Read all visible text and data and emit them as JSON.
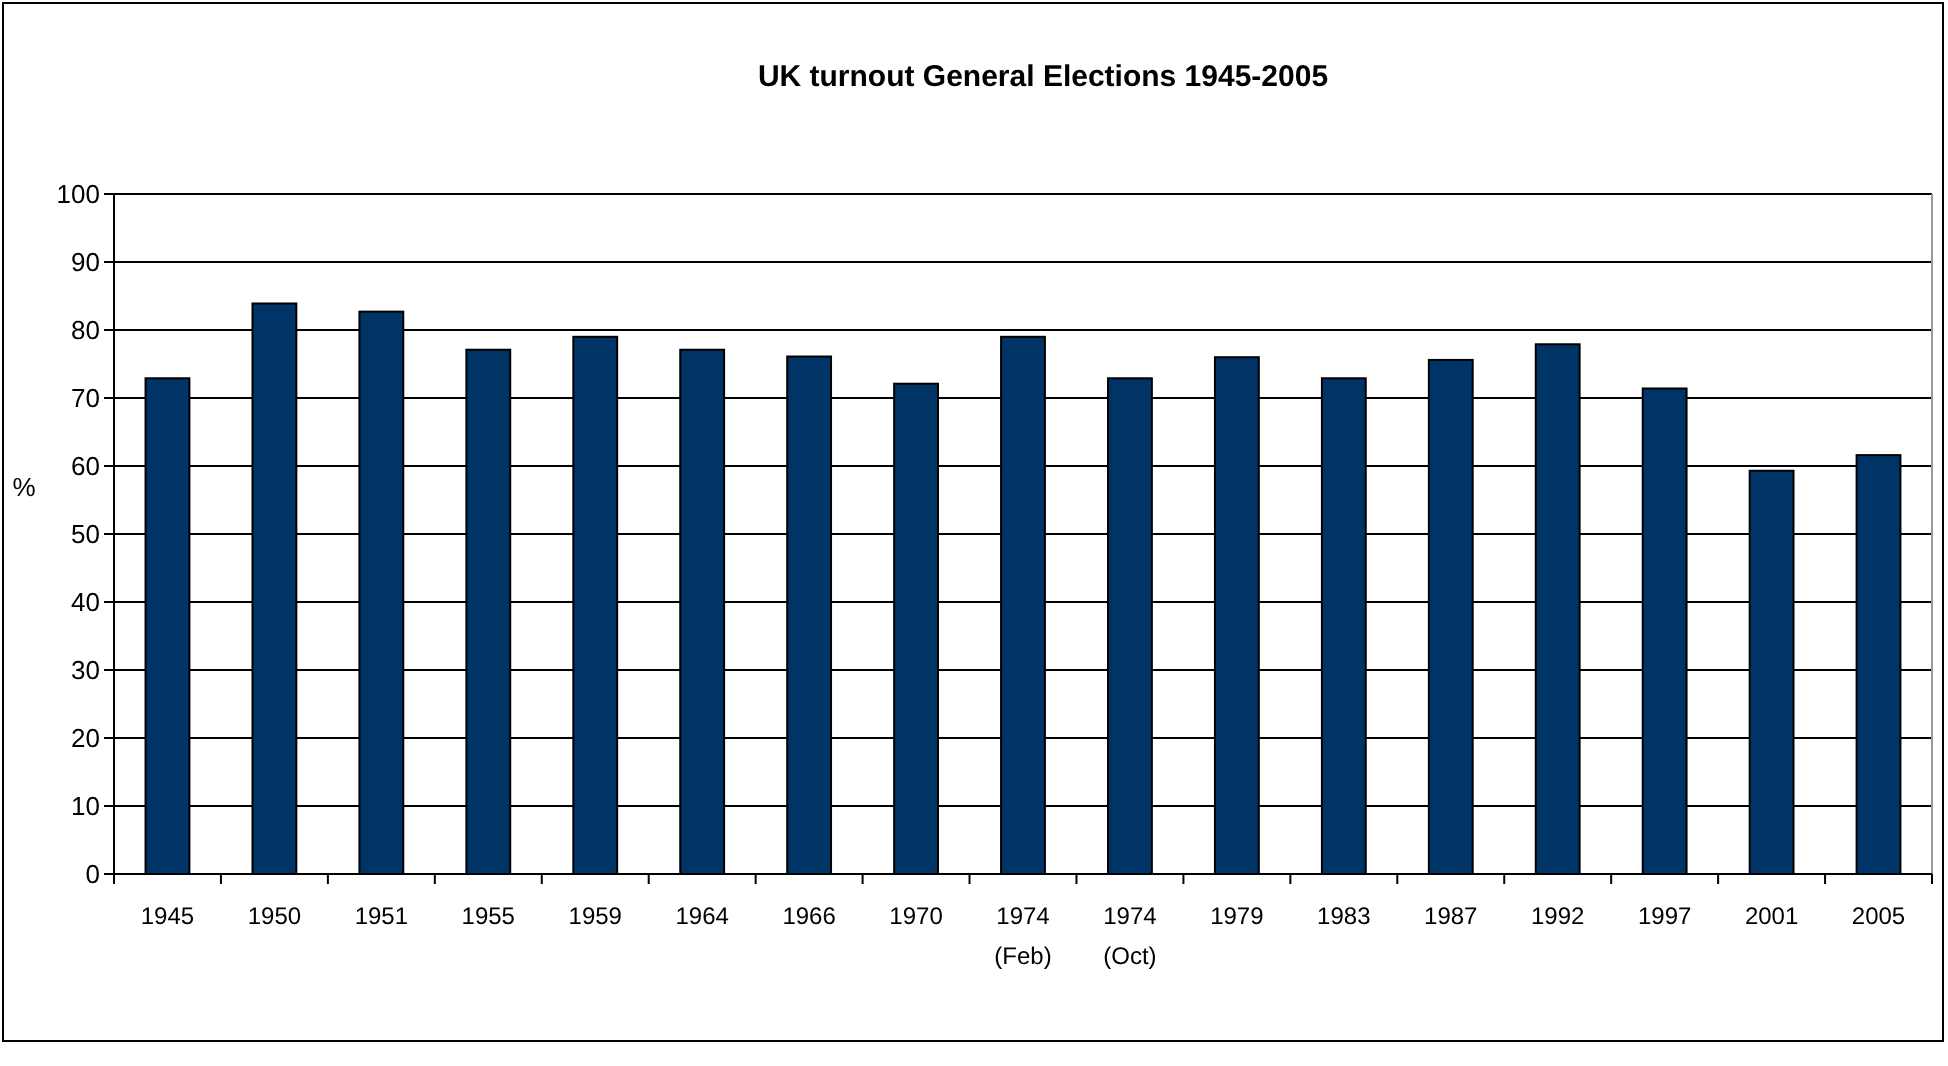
{
  "chart_data": {
    "type": "bar",
    "title": "UK turnout General Elections 1945-2005",
    "ylabel": "%",
    "categories": [
      "1945",
      "1950",
      "1951",
      "1955",
      "1959",
      "1964",
      "1966",
      "1970",
      "1974 (Feb)",
      "1974 (Oct)",
      "1979",
      "1983",
      "1987",
      "1992",
      "1997",
      "2001",
      "2005"
    ],
    "values": [
      72.9,
      83.9,
      82.7,
      77.1,
      79.0,
      77.1,
      76.1,
      72.1,
      79.0,
      72.9,
      76.0,
      72.9,
      75.6,
      77.9,
      71.4,
      59.3,
      61.6
    ],
    "color": "#003366",
    "ylim": [
      0,
      100
    ],
    "yticks": [
      0,
      10,
      20,
      30,
      40,
      50,
      60,
      70,
      80,
      90,
      100
    ],
    "grid": "y"
  }
}
